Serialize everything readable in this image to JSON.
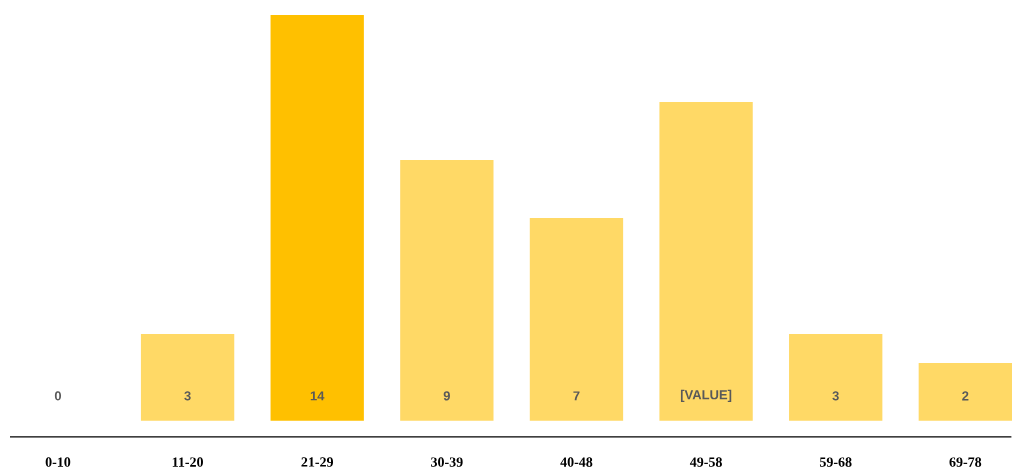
{
  "chart_data": {
    "type": "bar",
    "categories": [
      "0-10",
      "11-20",
      "21-29",
      "30-39",
      "40-48",
      "49-58",
      "59-68",
      "69-78"
    ],
    "values": [
      0,
      3,
      14,
      9,
      7,
      11,
      3,
      2
    ],
    "colors": [
      "#ffd966",
      "#ffd966",
      "#ffc000",
      "#ffd966",
      "#ffd966",
      "#ffd966",
      "#ffd966",
      "#ffd966"
    ],
    "value_labels": [
      "0",
      "3",
      "14",
      "9",
      "7",
      "[VALUE]",
      "3",
      "2"
    ]
  }
}
